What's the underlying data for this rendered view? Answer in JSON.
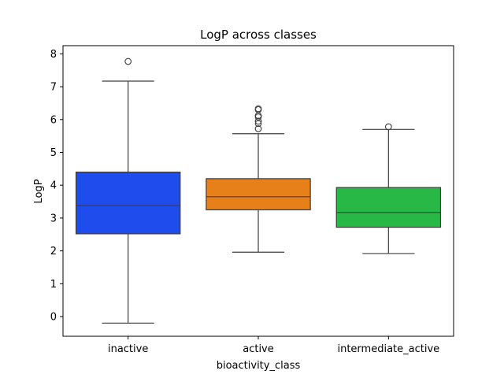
{
  "chart_data": {
    "type": "box",
    "title": "LogP across classes",
    "xlabel": "bioactivity_class",
    "ylabel": "LogP",
    "ylim": [
      -0.6,
      8.25
    ],
    "yticks": [
      0,
      1,
      2,
      3,
      4,
      5,
      6,
      7,
      8
    ],
    "grid": false,
    "categories": [
      "inactive",
      "active",
      "intermediate_active"
    ],
    "series": [
      {
        "category": "inactive",
        "color": "#1f4ced",
        "whisker_low": -0.2,
        "q1": 2.52,
        "median": 3.38,
        "q3": 4.4,
        "whisker_high": 7.17,
        "outliers": [
          7.77
        ]
      },
      {
        "category": "active",
        "color": "#e8801a",
        "whisker_low": 1.96,
        "q1": 3.25,
        "median": 3.65,
        "q3": 4.2,
        "whisker_high": 5.57,
        "outliers": [
          5.72,
          5.88,
          5.95,
          6.08,
          6.12,
          6.3,
          6.33
        ]
      },
      {
        "category": "intermediate_active",
        "color": "#27b845",
        "whisker_low": 1.92,
        "q1": 2.72,
        "median": 3.17,
        "q3": 3.93,
        "whisker_high": 5.7,
        "outliers": [
          5.78
        ]
      }
    ]
  }
}
